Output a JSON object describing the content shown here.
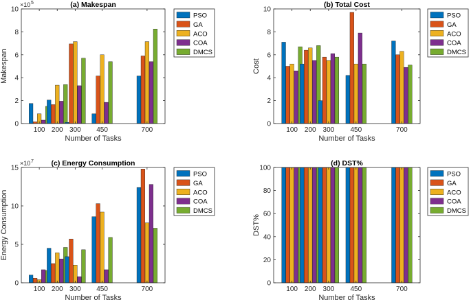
{
  "chart_data": [
    {
      "type": "bar",
      "title": "(a) Makespan",
      "xlabel": "Number of Tasks",
      "ylabel": "Makespan",
      "exponent": "5",
      "ylim": [
        0,
        10
      ],
      "yticks": [
        0,
        2,
        4,
        6,
        8,
        10
      ],
      "categories": [
        100,
        200,
        300,
        450,
        700
      ],
      "xlim": [
        0,
        800
      ],
      "series": [
        {
          "name": "PSO",
          "values": [
            1.75,
            2.05,
            0.1,
            0.85,
            4.15
          ]
        },
        {
          "name": "GA",
          "values": [
            0.15,
            1.65,
            6.95,
            4.15,
            5.9
          ]
        },
        {
          "name": "ACO",
          "values": [
            0.85,
            3.35,
            7.15,
            6.0,
            7.15
          ]
        },
        {
          "name": "COA",
          "values": [
            0.3,
            1.95,
            3.3,
            1.85,
            5.4
          ]
        },
        {
          "name": "DMCS",
          "values": [
            1.5,
            3.4,
            5.7,
            5.4,
            8.25
          ]
        }
      ]
    },
    {
      "type": "bar",
      "title": "(b) Total Cost",
      "xlabel": "Number of Tasks",
      "ylabel": "Cost",
      "exponent": "",
      "ylim": [
        0,
        10
      ],
      "yticks": [
        0,
        2,
        4,
        6,
        8,
        10
      ],
      "categories": [
        100,
        200,
        300,
        450,
        700
      ],
      "xlim": [
        0,
        800
      ],
      "series": [
        {
          "name": "PSO",
          "values": [
            7.1,
            5.2,
            2.0,
            4.2,
            7.2
          ]
        },
        {
          "name": "GA",
          "values": [
            5.0,
            6.4,
            5.8,
            9.7,
            6.0
          ]
        },
        {
          "name": "ACO",
          "values": [
            5.2,
            6.6,
            5.5,
            5.2,
            6.3
          ]
        },
        {
          "name": "COA",
          "values": [
            4.6,
            5.5,
            6.1,
            7.9,
            4.9
          ]
        },
        {
          "name": "DMCS",
          "values": [
            6.7,
            6.8,
            5.8,
            5.2,
            5.1
          ]
        }
      ]
    },
    {
      "type": "bar",
      "title": "(c) Energy Consumption",
      "xlabel": "Number of Tasks",
      "ylabel": "Energy Consumption",
      "exponent": "7",
      "ylim": [
        0,
        15
      ],
      "yticks": [
        0,
        5,
        10,
        15
      ],
      "categories": [
        100,
        200,
        300,
        450,
        700
      ],
      "xlim": [
        0,
        800
      ],
      "series": [
        {
          "name": "PSO",
          "values": [
            1.0,
            4.5,
            3.4,
            8.6,
            12.4
          ]
        },
        {
          "name": "GA",
          "values": [
            0.6,
            2.5,
            5.7,
            10.3,
            14.8
          ]
        },
        {
          "name": "ACO",
          "values": [
            0.4,
            3.9,
            2.3,
            9.2,
            7.8
          ]
        },
        {
          "name": "COA",
          "values": [
            1.7,
            3.1,
            0.8,
            1.7,
            12.8
          ]
        },
        {
          "name": "DMCS",
          "values": [
            1.6,
            4.6,
            4.3,
            5.9,
            7.1
          ]
        }
      ]
    },
    {
      "type": "bar",
      "title": "(d) DST%",
      "xlabel": "Number of Tasks",
      "ylabel": "DST%",
      "exponent": "",
      "ylim": [
        0,
        100
      ],
      "yticks": [
        0,
        20,
        40,
        60,
        80,
        100
      ],
      "categories": [
        100,
        200,
        300,
        450,
        700
      ],
      "xlim": [
        0,
        800
      ],
      "series": [
        {
          "name": "PSO",
          "values": [
            100,
            100,
            100,
            100,
            100
          ]
        },
        {
          "name": "GA",
          "values": [
            100,
            100,
            100,
            100,
            100
          ]
        },
        {
          "name": "ACO",
          "values": [
            100,
            100,
            100,
            100,
            100
          ]
        },
        {
          "name": "COA",
          "values": [
            100,
            100,
            100,
            100,
            100
          ]
        },
        {
          "name": "DMCS",
          "values": [
            100,
            100,
            100,
            100,
            100
          ]
        }
      ]
    }
  ],
  "colors": {
    "PSO": "#0072BD",
    "GA": "#D95319",
    "ACO": "#EDB120",
    "COA": "#7E2F8E",
    "DMCS": "#77AC30"
  }
}
